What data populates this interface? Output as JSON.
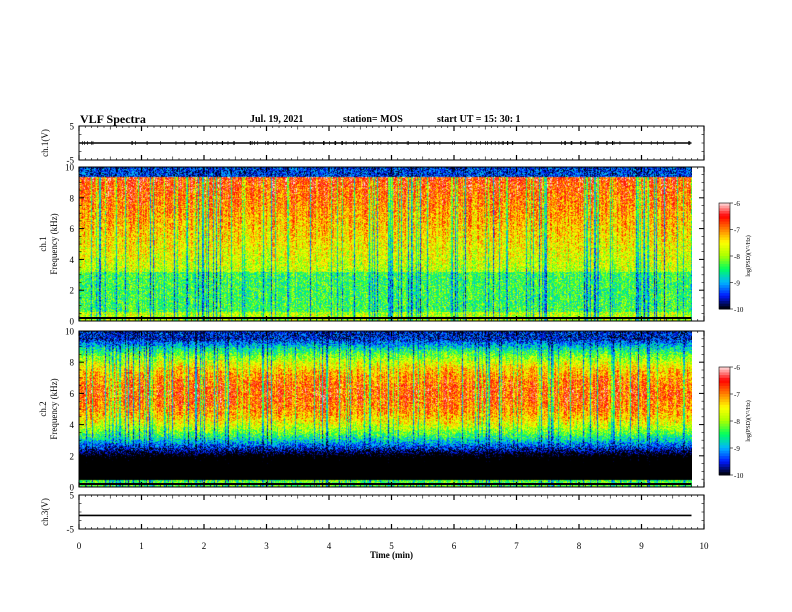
{
  "header": {
    "title": "VLF Spectra",
    "date": "Jul. 19, 2021",
    "station": "station= MOS",
    "start": "start UT = 15: 30: 1"
  },
  "chart_data": [
    {
      "type": "line",
      "panel": "ch1-waveform",
      "ylabel": "ch.1(V)",
      "ylim": [
        -5,
        5
      ],
      "yticks": [
        "5",
        "-5"
      ],
      "xlim": [
        0,
        10
      ],
      "series": [
        {
          "values_description_note": "",
          "x": [
            0,
            9.8
          ],
          "y": [
            0,
            0
          ]
        }
      ]
    },
    {
      "type": "heatmap",
      "panel": "ch1-spectrogram",
      "ylabel": "ch.1 Frequency (kHz)",
      "ylim": [
        0,
        10
      ],
      "yticks": [
        "0",
        "2",
        "4",
        "6",
        "8",
        "10"
      ],
      "xlim": [
        0,
        10
      ],
      "data_end_x": 9.8,
      "profile": "broadband",
      "colorbar": {
        "label": "log(PSD)(V²/Hz)",
        "range": [
          -10,
          -6
        ],
        "ticks": [
          "-6",
          "-7",
          "-8",
          "-9",
          "-10"
        ]
      }
    },
    {
      "type": "heatmap",
      "panel": "ch2-spectrogram",
      "ylabel": "ch.2 Frequency (kHz)",
      "ylim": [
        0,
        10
      ],
      "yticks": [
        "0",
        "2",
        "4",
        "6",
        "8",
        "10"
      ],
      "xlim": [
        0,
        10
      ],
      "data_end_x": 9.8,
      "profile": "peak-6kHz",
      "colorbar": {
        "label": "log(PSD)(V²/Hz)",
        "range": [
          -10,
          -6
        ],
        "ticks": [
          "-6",
          "-7",
          "-8",
          "-9",
          "-10"
        ]
      }
    },
    {
      "type": "line",
      "panel": "ch3-waveform",
      "ylabel": "ch.3(V)",
      "ylim": [
        -5,
        5
      ],
      "yticks": [
        "5",
        "-5"
      ],
      "xlim": [
        0,
        10
      ],
      "xlabel": "Time (min)",
      "xticks": [
        "0",
        "1",
        "2",
        "3",
        "4",
        "5",
        "6",
        "7",
        "8",
        "9",
        "10"
      ],
      "series": [
        {
          "x": [
            0,
            9.8
          ],
          "y": [
            -1,
            -1
          ]
        }
      ]
    }
  ],
  "colors": {
    "palette": [
      "#000000",
      "#001aff",
      "#00b4ff",
      "#00ff60",
      "#a8ff00",
      "#ffff00",
      "#ff8000",
      "#ff0000",
      "#ffe0e0"
    ]
  }
}
